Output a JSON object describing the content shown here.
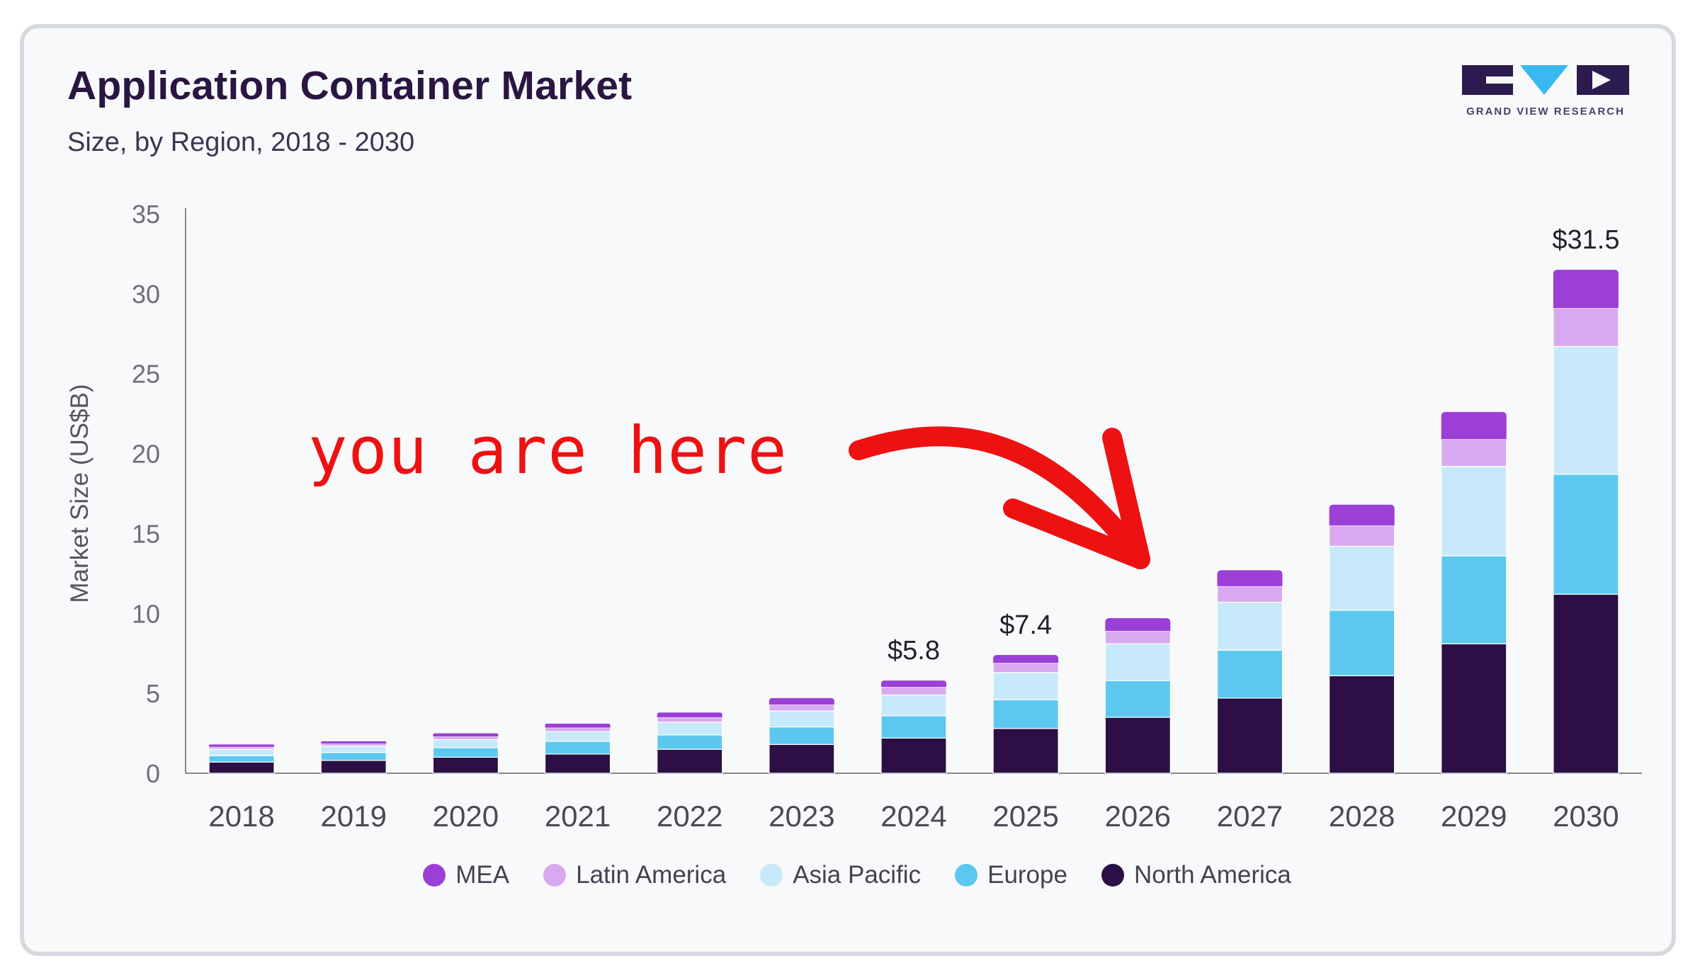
{
  "header": {
    "title": "Application Container Market",
    "subtitle": "Size, by Region, 2018 - 2030",
    "logo_text": "GRAND VIEW RESEARCH"
  },
  "annotation": {
    "text": "you are here"
  },
  "colors": {
    "MEA": "#9b3fd6",
    "Latin America": "#d9a9ef",
    "Asia Pacific": "#c7e9fb",
    "Europe": "#5cc8ef",
    "North America": "#2b0f45",
    "annotation": "#ee1111",
    "axis": "#888888"
  },
  "chart_data": {
    "type": "bar",
    "stacked": true,
    "title": "",
    "xlabel": "",
    "ylabel": "Market Size (US$B)",
    "ylim": [
      0,
      35
    ],
    "yticks": [
      0,
      5,
      10,
      15,
      20,
      25,
      30,
      35
    ],
    "categories": [
      "2018",
      "2019",
      "2020",
      "2021",
      "2022",
      "2023",
      "2024",
      "2025",
      "2026",
      "2027",
      "2028",
      "2029",
      "2030"
    ],
    "series": [
      {
        "name": "North America",
        "values": [
          0.7,
          0.8,
          1.0,
          1.2,
          1.5,
          1.8,
          2.2,
          2.8,
          3.5,
          4.7,
          6.1,
          8.1,
          11.2
        ]
      },
      {
        "name": "Europe",
        "values": [
          0.4,
          0.5,
          0.6,
          0.8,
          0.9,
          1.1,
          1.4,
          1.8,
          2.3,
          3.0,
          4.1,
          5.5,
          7.5
        ]
      },
      {
        "name": "Asia Pacific",
        "values": [
          0.4,
          0.4,
          0.5,
          0.6,
          0.8,
          1.0,
          1.3,
          1.7,
          2.3,
          3.0,
          4.0,
          5.6,
          8.0
        ]
      },
      {
        "name": "Latin America",
        "values": [
          0.15,
          0.15,
          0.2,
          0.25,
          0.3,
          0.4,
          0.5,
          0.6,
          0.8,
          1.0,
          1.3,
          1.7,
          2.4
        ]
      },
      {
        "name": "MEA",
        "values": [
          0.15,
          0.15,
          0.2,
          0.25,
          0.3,
          0.4,
          0.4,
          0.5,
          0.8,
          1.0,
          1.3,
          1.7,
          2.4
        ]
      }
    ],
    "legend_order": [
      "MEA",
      "Latin America",
      "Asia Pacific",
      "Europe",
      "North America"
    ],
    "data_labels": [
      {
        "category": "2024",
        "text": "$5.8"
      },
      {
        "category": "2025",
        "text": "$7.4"
      },
      {
        "category": "2030",
        "text": "$31.5"
      }
    ],
    "legend_position": "bottom",
    "grid": false
  }
}
